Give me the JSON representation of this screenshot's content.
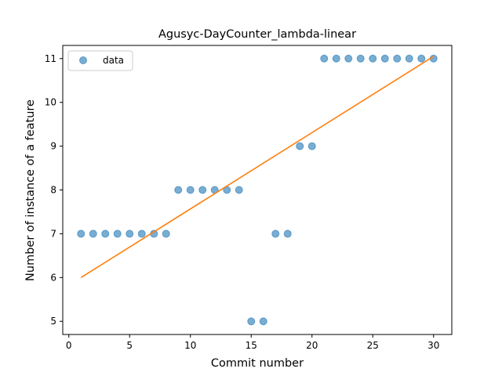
{
  "chart_data": {
    "type": "scatter",
    "title": "Agusyc-DayCounter_lambda-linear",
    "xlabel": "Commit number",
    "ylabel": "Number of instance of a feature",
    "xlim": [
      -0.5,
      31.5
    ],
    "ylim": [
      4.7,
      11.3
    ],
    "xticks": [
      0,
      5,
      10,
      15,
      20,
      25,
      30
    ],
    "yticks": [
      5,
      6,
      7,
      8,
      9,
      10,
      11
    ],
    "grid": false,
    "legend_position": "upper left",
    "series": [
      {
        "name": "data",
        "kind": "scatter",
        "color": "#1f77b4",
        "x": [
          1,
          2,
          3,
          4,
          5,
          6,
          7,
          8,
          9,
          10,
          11,
          12,
          13,
          14,
          15,
          16,
          17,
          18,
          19,
          20,
          21,
          22,
          23,
          24,
          25,
          26,
          27,
          28,
          29,
          30
        ],
        "y": [
          7,
          7,
          7,
          7,
          7,
          7,
          7,
          7,
          8,
          8,
          8,
          8,
          8,
          8,
          5,
          5,
          7,
          7,
          9,
          9,
          11,
          11,
          11,
          11,
          11,
          11,
          11,
          11,
          11,
          11
        ]
      },
      {
        "kind": "line",
        "color": "#ff7f0e",
        "x": [
          1,
          30
        ],
        "y": [
          6.0,
          11.05
        ]
      }
    ]
  }
}
